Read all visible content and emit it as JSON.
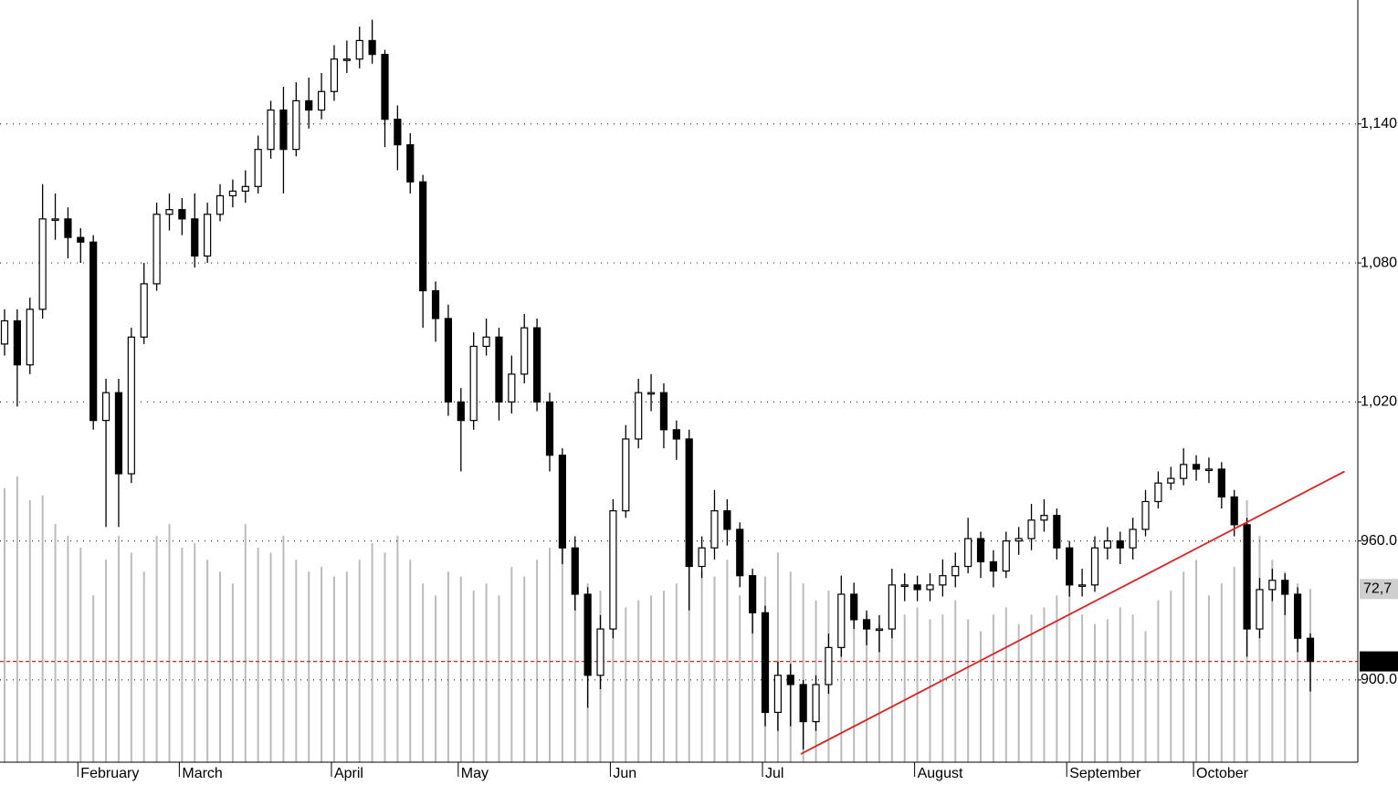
{
  "chart_data": {
    "type": "candlestick",
    "categories": [
      null,
      null,
      null,
      null,
      null,
      null,
      "February",
      null,
      null,
      null,
      null,
      null,
      null,
      null,
      "March",
      null,
      null,
      null,
      null,
      null,
      null,
      null,
      null,
      null,
      null,
      null,
      "April",
      null,
      null,
      null,
      null,
      null,
      null,
      null,
      null,
      null,
      "May",
      null,
      null,
      null,
      null,
      null,
      null,
      null,
      null,
      null,
      null,
      null,
      "Jun",
      null,
      null,
      null,
      null,
      null,
      null,
      null,
      null,
      null,
      null,
      null,
      "Jul",
      null,
      null,
      null,
      null,
      null,
      null,
      null,
      null,
      null,
      null,
      null,
      "August",
      null,
      null,
      null,
      null,
      null,
      null,
      null,
      null,
      null,
      null,
      null,
      "September",
      null,
      null,
      null,
      null,
      null,
      null,
      null,
      null,
      null,
      "October",
      null,
      null,
      null,
      null,
      null,
      null,
      null,
      null,
      null
    ],
    "open": [
      1045,
      1055,
      1036,
      1060,
      1099,
      1099,
      1091,
      1089,
      1012,
      1024,
      989,
      1048,
      1071,
      1101,
      1103,
      1099,
      1083,
      1101,
      1109,
      1111,
      1113,
      1129,
      1146,
      1129,
      1150,
      1146,
      1154,
      1168,
      1168,
      1176,
      1170,
      1142,
      1131,
      1115,
      1068,
      1056,
      1020,
      1012,
      1044,
      1048,
      1020,
      1032,
      1052,
      1020,
      997,
      957,
      937,
      902,
      922,
      973,
      1004,
      1024,
      1024,
      1008,
      1004,
      949,
      957,
      973,
      965,
      945,
      929,
      886,
      902,
      898,
      882,
      898,
      914,
      937,
      926,
      922,
      922,
      941,
      941,
      939,
      941,
      945,
      949,
      961,
      951,
      947,
      960,
      961,
      969,
      971,
      957,
      941,
      941,
      957,
      960,
      957,
      965,
      977,
      985,
      987,
      993,
      991,
      991,
      979,
      967,
      922,
      939,
      943,
      937,
      918
    ],
    "high": [
      1060,
      1060,
      1065,
      1114,
      1110,
      1104,
      1095,
      1092,
      1030,
      1030,
      1052,
      1080,
      1106,
      1110,
      1108,
      1110,
      1106,
      1114,
      1116,
      1120,
      1135,
      1150,
      1156,
      1158,
      1160,
      1162,
      1174,
      1176,
      1182,
      1185,
      1172,
      1148,
      1136,
      1118,
      1072,
      1062,
      1026,
      1050,
      1056,
      1052,
      1040,
      1058,
      1056,
      1024,
      1000,
      962,
      940,
      928,
      978,
      1010,
      1030,
      1032,
      1028,
      1012,
      1008,
      962,
      982,
      978,
      968,
      948,
      932,
      908,
      907,
      900,
      902,
      920,
      945,
      942,
      930,
      928,
      948,
      946,
      945,
      946,
      952,
      955,
      970,
      964,
      956,
      964,
      966,
      976,
      978,
      974,
      960,
      948,
      962,
      966,
      964,
      970,
      982,
      990,
      992,
      1000,
      997,
      996,
      994,
      982,
      970,
      944,
      948,
      946,
      940,
      920
    ],
    "low": [
      1040,
      1018,
      1032,
      1056,
      1090,
      1082,
      1080,
      1008,
      966,
      966,
      985,
      1045,
      1068,
      1094,
      1092,
      1078,
      1080,
      1098,
      1104,
      1106,
      1110,
      1125,
      1110,
      1126,
      1138,
      1142,
      1150,
      1162,
      1164,
      1166,
      1130,
      1120,
      1110,
      1052,
      1046,
      1014,
      990,
      1008,
      1040,
      1012,
      1015,
      1028,
      1016,
      990,
      950,
      930,
      888,
      896,
      918,
      970,
      1000,
      1016,
      1000,
      995,
      930,
      944,
      952,
      958,
      940,
      920,
      880,
      878,
      880,
      870,
      878,
      894,
      910,
      922,
      915,
      912,
      918,
      934,
      934,
      934,
      936,
      940,
      946,
      944,
      940,
      944,
      954,
      956,
      964,
      952,
      936,
      936,
      938,
      952,
      950,
      952,
      962,
      974,
      982,
      984,
      986,
      985,
      974,
      962,
      910,
      918,
      934,
      928,
      912,
      895
    ],
    "close": [
      1055,
      1036,
      1060,
      1099,
      1099,
      1091,
      1089,
      1012,
      1024,
      989,
      1048,
      1071,
      1101,
      1103,
      1099,
      1083,
      1101,
      1109,
      1111,
      1113,
      1129,
      1146,
      1129,
      1150,
      1146,
      1154,
      1168,
      1168,
      1176,
      1170,
      1142,
      1131,
      1115,
      1068,
      1056,
      1020,
      1012,
      1044,
      1048,
      1020,
      1032,
      1052,
      1020,
      997,
      957,
      937,
      902,
      922,
      973,
      1004,
      1024,
      1024,
      1008,
      1004,
      949,
      957,
      973,
      965,
      945,
      929,
      886,
      902,
      898,
      882,
      898,
      914,
      937,
      926,
      922,
      922,
      941,
      941,
      939,
      941,
      945,
      949,
      961,
      951,
      947,
      960,
      961,
      969,
      971,
      957,
      941,
      941,
      957,
      960,
      957,
      965,
      977,
      985,
      987,
      993,
      991,
      991,
      979,
      967,
      922,
      939,
      943,
      937,
      918,
      908
    ],
    "volume": {
      "axis": "y2",
      "color": "#bbbbbb",
      "values": [
        115,
        120,
        110,
        112,
        100,
        95,
        90,
        70,
        85,
        95,
        88,
        80,
        95,
        100,
        90,
        92,
        85,
        80,
        75,
        100,
        90,
        88,
        95,
        85,
        80,
        82,
        78,
        80,
        85,
        92,
        88,
        95,
        85,
        75,
        70,
        80,
        78,
        72,
        75,
        70,
        82,
        78,
        85,
        90,
        95,
        80,
        75,
        72,
        70,
        65,
        68,
        70,
        72,
        75,
        82,
        80,
        78,
        85,
        70,
        75,
        78,
        88,
        80,
        75,
        68,
        72,
        65,
        60,
        62,
        58,
        70,
        62,
        65,
        60,
        62,
        68,
        60,
        55,
        62,
        65,
        58,
        62,
        65,
        70,
        75,
        62,
        58,
        60,
        65,
        62,
        55,
        68,
        72,
        80,
        85,
        70,
        75,
        82,
        110,
        95,
        85,
        80,
        75,
        72.7
      ]
    },
    "up_color": "#ffffff",
    "down_color": "#000000",
    "ylim": [
      864.5,
      1193.5
    ],
    "yticks": [
      {
        "value": 900,
        "label": "900.0"
      },
      {
        "value": 960,
        "label": "960.0"
      },
      {
        "value": 1020,
        "label": "1,020"
      },
      {
        "value": 1080,
        "label": "1,080"
      },
      {
        "value": 1140,
        "label": "1,140"
      }
    ],
    "y2lim": [
      0,
      320
    ],
    "y2ticks": [
      {
        "value": 72.7,
        "label": "72,7"
      }
    ],
    "grid": true,
    "trendline": {
      "color": "#e02020",
      "x": [
        62.8,
        105.7
      ],
      "y": [
        868,
        990
      ]
    },
    "last_price_line": {
      "color": "#e02020"
    }
  }
}
